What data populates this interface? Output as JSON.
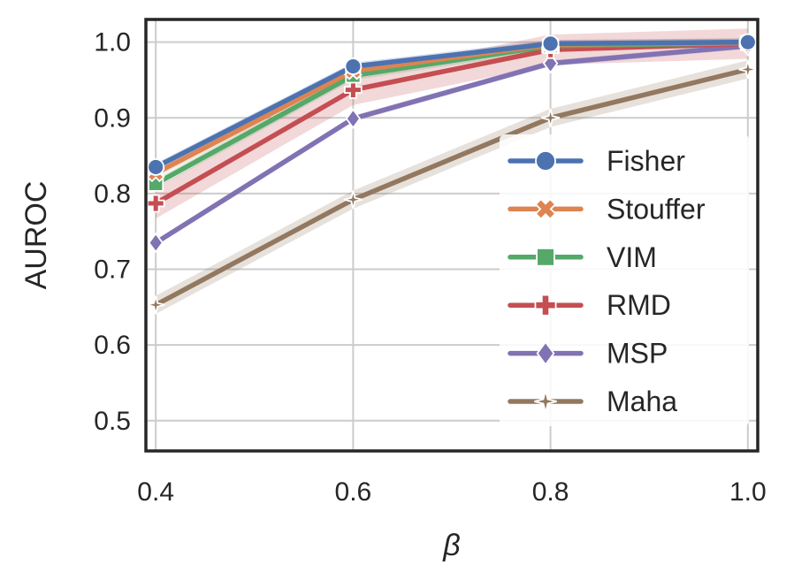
{
  "chart_data": {
    "type": "line",
    "title": "",
    "xlabel": "β",
    "ylabel": "AUROC",
    "x": [
      0.4,
      0.6,
      0.8,
      1.0
    ],
    "xlim": [
      0.39,
      1.01
    ],
    "ylim": [
      0.46,
      1.03
    ],
    "xticks": [
      0.4,
      0.6,
      0.8,
      1.0
    ],
    "xtick_labels": [
      "0.4",
      "0.6",
      "0.8",
      "1.0"
    ],
    "yticks": [
      0.5,
      0.6,
      0.7,
      0.8,
      0.9,
      1.0
    ],
    "ytick_labels": [
      "0.5",
      "0.6",
      "0.7",
      "0.8",
      "0.9",
      "1.0"
    ],
    "grid": true,
    "legend_position": "lower-right",
    "series": [
      {
        "name": "Fisher",
        "values": [
          0.835,
          0.968,
          0.998,
          1.0
        ],
        "band": 0.005,
        "color": "#4c72b0",
        "marker": "circle"
      },
      {
        "name": "Stouffer",
        "values": [
          0.827,
          0.962,
          0.997,
          0.999
        ],
        "band": 0.006,
        "color": "#dd8452",
        "marker": "x"
      },
      {
        "name": "VIM",
        "values": [
          0.813,
          0.956,
          0.995,
          0.999
        ],
        "band": 0.006,
        "color": "#55a868",
        "marker": "square"
      },
      {
        "name": "RMD",
        "values": [
          0.787,
          0.937,
          0.99,
          0.998
        ],
        "band": 0.02,
        "color": "#c44e52",
        "marker": "plus"
      },
      {
        "name": "MSP",
        "values": [
          0.735,
          0.899,
          0.972,
          0.995
        ],
        "band": 0.004,
        "color": "#8172b3",
        "marker": "diamond"
      },
      {
        "name": "Maha",
        "values": [
          0.653,
          0.792,
          0.9,
          0.964
        ],
        "band": 0.012,
        "color": "#937860",
        "marker": "star"
      }
    ]
  }
}
